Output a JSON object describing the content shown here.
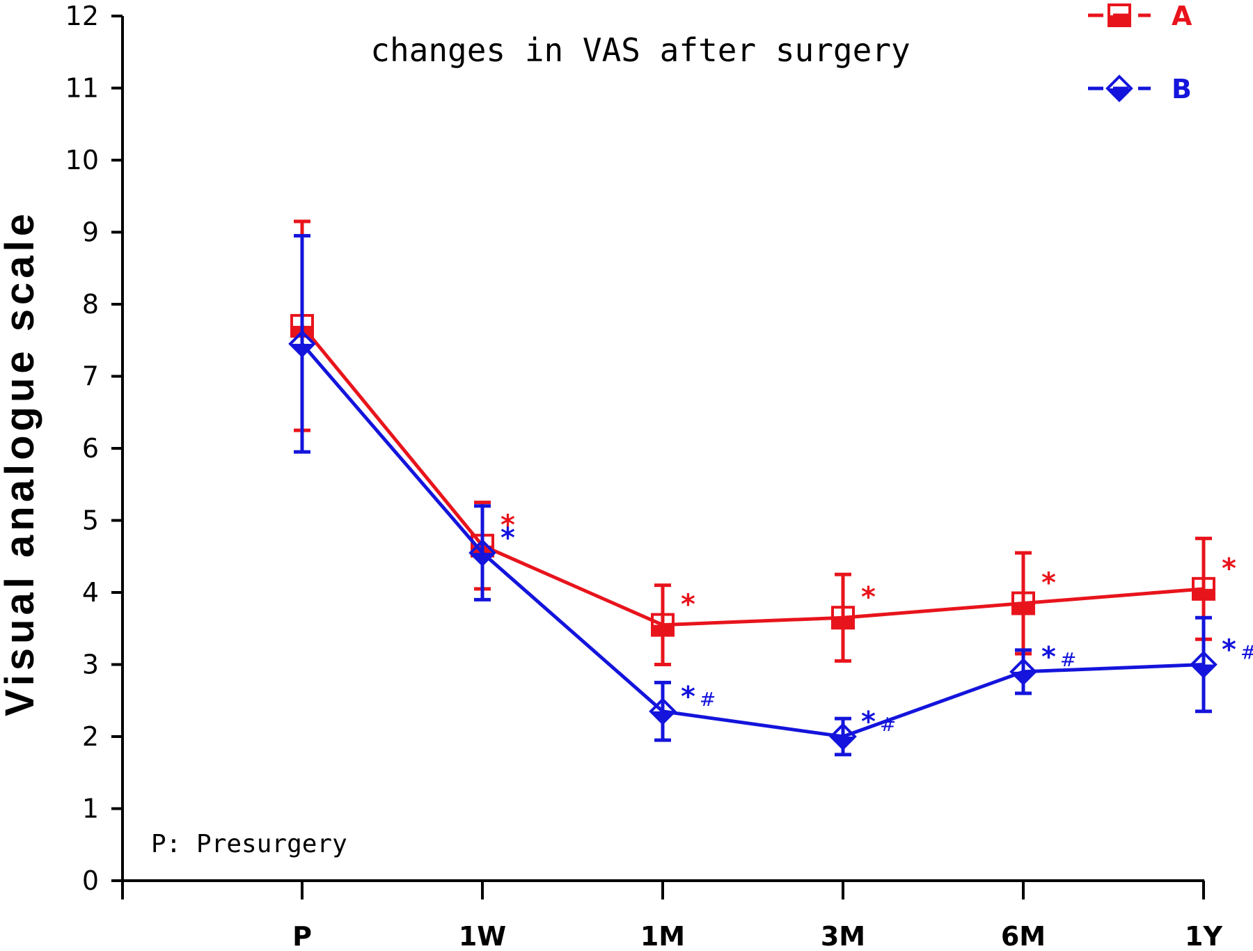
{
  "chart_data": {
    "type": "line",
    "title": "changes in VAS after surgery",
    "xlabel": "",
    "ylabel": "Visual analogue scale",
    "ylim": [
      0,
      12
    ],
    "yticks": [
      "0",
      "1",
      "2",
      "3",
      "4",
      "5",
      "6",
      "7",
      "8",
      "9",
      "10",
      "11",
      "12"
    ],
    "categories": [
      "P",
      "1W",
      "1M",
      "3M",
      "6M",
      "1Y"
    ],
    "footnote": "P: Presurgery",
    "legend_position": "top-right",
    "series": [
      {
        "name": "A",
        "color": "#e8141c",
        "marker": "half-filled-square",
        "values": [
          7.7,
          4.65,
          3.55,
          3.65,
          3.85,
          4.05
        ],
        "error_upper": [
          9.15,
          5.25,
          4.1,
          4.25,
          4.55,
          4.75
        ],
        "error_lower": [
          6.25,
          4.05,
          3.0,
          3.05,
          3.15,
          3.35
        ],
        "annotations": [
          "",
          "*",
          "*",
          "*",
          "*",
          "*"
        ]
      },
      {
        "name": "B",
        "color": "#1414dc",
        "marker": "half-filled-diamond",
        "values": [
          7.45,
          4.55,
          2.35,
          2.0,
          2.9,
          3.0
        ],
        "error_upper": [
          8.95,
          5.2,
          2.75,
          2.25,
          3.2,
          3.65
        ],
        "error_lower": [
          5.95,
          3.9,
          1.95,
          1.75,
          2.6,
          2.35
        ],
        "annotations": [
          "",
          "*",
          "*#",
          "*#",
          "*#",
          "*#"
        ]
      }
    ]
  }
}
